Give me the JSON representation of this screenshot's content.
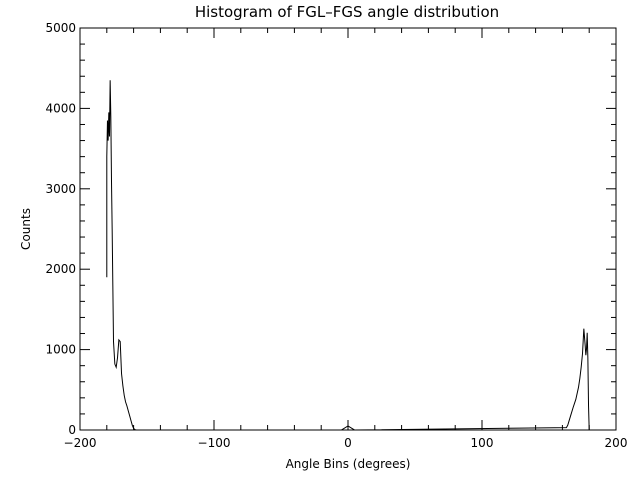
{
  "chart_data": {
    "type": "line",
    "title": "Histogram of FGL–FGS angle distribution",
    "xlabel": "Angle Bins (degrees)",
    "ylabel": "Counts",
    "xlim": [
      -200,
      200
    ],
    "ylim": [
      0,
      5000
    ],
    "xticks": [
      -200,
      -100,
      0,
      100,
      200
    ],
    "xtick_labels": [
      "−200",
      "−100",
      "0",
      "100",
      "200"
    ],
    "yticks": [
      0,
      1000,
      2000,
      3000,
      4000,
      5000
    ],
    "ytick_labels": [
      "0",
      "1000",
      "2000",
      "3000",
      "4000",
      "5000"
    ],
    "grid": false,
    "line_color": "#000000",
    "series": [
      {
        "x": [
          -180,
          -180,
          -179.5,
          -179,
          -178.5,
          -178,
          -177.5,
          -177,
          -176.5,
          -176,
          -175.5,
          -175,
          -174,
          -173,
          -172,
          -171,
          -170,
          -169,
          -168,
          -167,
          -166,
          -165,
          -164,
          -163,
          -162,
          -161,
          -160,
          -159,
          -158,
          -5,
          -3,
          0,
          3,
          5,
          163,
          164,
          166,
          168,
          170,
          172,
          173,
          174,
          175,
          176,
          177,
          177.5,
          178,
          178.5,
          179,
          179.5,
          180
        ],
        "y": [
          1900,
          3400,
          3850,
          3600,
          3950,
          3650,
          4350,
          3900,
          3100,
          2500,
          1800,
          1100,
          820,
          780,
          900,
          1120,
          1100,
          700,
          550,
          430,
          350,
          300,
          240,
          180,
          120,
          60,
          20,
          5,
          0,
          0,
          20,
          50,
          20,
          0,
          30,
          60,
          170,
          280,
          380,
          530,
          640,
          780,
          950,
          1260,
          1050,
          930,
          1010,
          1210,
          900,
          300,
          0
        ]
      }
    ]
  }
}
